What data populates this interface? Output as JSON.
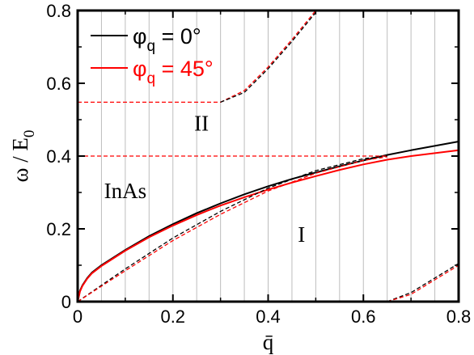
{
  "chart_data": {
    "type": "line",
    "xlabel": "q̄",
    "ylabel": "ω / E",
    "ylabel_sub": "0",
    "xlim": [
      0,
      0.8
    ],
    "ylim": [
      0,
      0.8
    ],
    "xticks": [
      "0",
      "0.2",
      "0.4",
      "0.6",
      "0.8"
    ],
    "yticks": [
      "0",
      "0.2",
      "0.4",
      "0.6",
      "0.8"
    ],
    "x_tick_values": [
      0,
      0.2,
      0.4,
      0.6,
      0.8
    ],
    "y_tick_values": [
      0,
      0.2,
      0.4,
      0.6,
      0.8
    ],
    "vertical_grid_x": [
      0.05,
      0.1,
      0.15,
      0.2,
      0.25,
      0.3,
      0.35,
      0.4,
      0.45,
      0.5,
      0.55,
      0.6,
      0.65,
      0.7,
      0.75
    ],
    "annotations": [
      {
        "text": "II",
        "x": 0.26,
        "y": 0.47
      },
      {
        "text": "InAs",
        "x": 0.1,
        "y": 0.285
      },
      {
        "text": "I",
        "x": 0.47,
        "y": 0.165
      }
    ],
    "legend": {
      "placement": "top-left",
      "entries": [
        {
          "symbol": "φ",
          "sub": "q",
          "rest": " = 0°",
          "color": "#000000"
        },
        {
          "symbol": "φ",
          "sub": "q",
          "rest": " = 45°",
          "color": "#ff0000"
        }
      ]
    },
    "series": [
      {
        "name": "φq = 0°",
        "color": "#000000",
        "style": "solid",
        "x": [
          0,
          0.005,
          0.01,
          0.02,
          0.03,
          0.05,
          0.1,
          0.15,
          0.2,
          0.25,
          0.3,
          0.35,
          0.4,
          0.45,
          0.5,
          0.55,
          0.6,
          0.65,
          0.7,
          0.75,
          0.8
        ],
        "y": [
          0,
          0.03,
          0.045,
          0.065,
          0.08,
          0.1,
          0.142,
          0.18,
          0.213,
          0.243,
          0.27,
          0.295,
          0.317,
          0.337,
          0.355,
          0.372,
          0.388,
          0.403,
          0.416,
          0.428,
          0.44
        ]
      },
      {
        "name": "φq = 45°",
        "color": "#ff0000",
        "style": "solid",
        "x": [
          0,
          0.005,
          0.01,
          0.02,
          0.03,
          0.05,
          0.1,
          0.15,
          0.2,
          0.25,
          0.3,
          0.35,
          0.4,
          0.45,
          0.5,
          0.55,
          0.6,
          0.65,
          0.7,
          0.75,
          0.8
        ],
        "y": [
          0,
          0.028,
          0.043,
          0.063,
          0.078,
          0.098,
          0.14,
          0.177,
          0.209,
          0.238,
          0.264,
          0.287,
          0.308,
          0.327,
          0.345,
          0.362,
          0.377,
          0.39,
          0.4,
          0.408,
          0.416
        ]
      },
      {
        "name": "",
        "color": "#000000",
        "style": "dashed",
        "x": [
          0,
          0.1,
          0.2,
          0.3,
          0.4,
          0.5,
          0.6,
          0.65
        ],
        "y": [
          0,
          0.09,
          0.175,
          0.248,
          0.312,
          0.36,
          0.393,
          0.4
        ]
      },
      {
        "name": "",
        "color": "#ff0000",
        "style": "dashed",
        "x": [
          0,
          0.1,
          0.2,
          0.3,
          0.4,
          0.5,
          0.6,
          0.65
        ],
        "y": [
          0,
          0.085,
          0.168,
          0.24,
          0.304,
          0.353,
          0.388,
          0.398
        ]
      },
      {
        "name": "",
        "color": "#ff0000",
        "style": "dashed",
        "x": [
          0,
          0.3,
          0.35,
          0.4,
          0.45,
          0.5
        ],
        "y": [
          0.548,
          0.548,
          0.58,
          0.645,
          0.72,
          0.8
        ]
      },
      {
        "name": "",
        "color": "#000000",
        "style": "dashed",
        "x": [
          0.3,
          0.35,
          0.4,
          0.45,
          0.5
        ],
        "y": [
          0.548,
          0.575,
          0.64,
          0.715,
          0.795
        ]
      },
      {
        "name": "",
        "color": "#ff0000",
        "style": "dashed",
        "x": [
          0,
          0.65
        ],
        "y": [
          0.4,
          0.4
        ]
      },
      {
        "name": "",
        "color": "#000000",
        "style": "dashed",
        "x": [
          0.65,
          0.7,
          0.75,
          0.8
        ],
        "y": [
          0,
          0.025,
          0.065,
          0.105
        ]
      },
      {
        "name": "",
        "color": "#ff0000",
        "style": "dashed",
        "x": [
          0.65,
          0.7,
          0.75,
          0.8
        ],
        "y": [
          0,
          0.02,
          0.06,
          0.1
        ]
      }
    ]
  }
}
